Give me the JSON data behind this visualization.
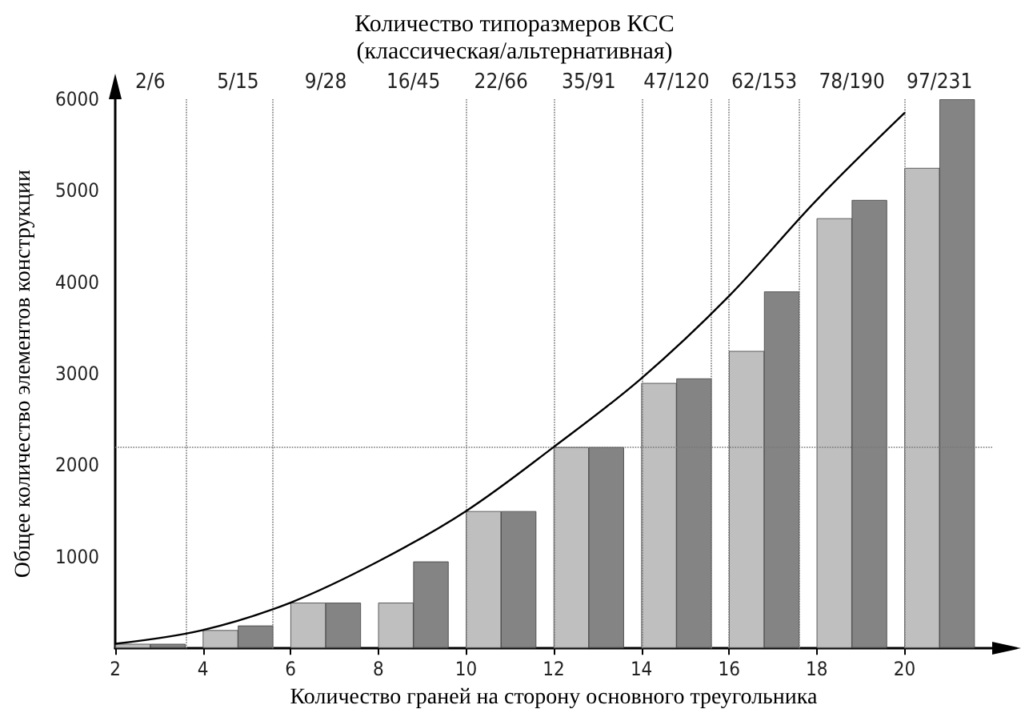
{
  "chart_data": {
    "type": "bar",
    "title": "Количество типоразмеров КСС\n(классическая/альтернативная)",
    "xlabel": "Количество граней на сторону основного треугольника",
    "ylabel": "Общее количество элементов конструкции",
    "xlim": [
      2,
      22
    ],
    "xticks": [
      2,
      4,
      6,
      8,
      10,
      12,
      14,
      16,
      18,
      20
    ],
    "ylim": [
      0,
      6000
    ],
    "yticks": [
      1000,
      2000,
      3000,
      4000,
      5000,
      6000
    ],
    "annotations": [
      "2/6",
      "5/15",
      "9/28",
      "16/45",
      "22/66",
      "35/91",
      "47/120",
      "62/153",
      "78/190",
      "97/231"
    ],
    "grid": false,
    "series": [
      {
        "color": "#b4b4b4",
        "x": [
          2.4,
          4.4,
          6.4,
          8.4,
          10.4,
          12.4,
          14.4,
          16.4,
          18.4,
          20.4
        ],
        "values": [
          50,
          200,
          500,
          500,
          1500,
          2200,
          2900,
          3250,
          4700,
          5250
        ]
      },
      {
        "color": "#6e6e6e",
        "x": [
          3.2,
          5.2,
          7.2,
          9.2,
          11.2,
          13.2,
          15.2,
          17.2,
          19.2,
          21.2
        ],
        "values": [
          50,
          250,
          500,
          950,
          1500,
          2200,
          2950,
          3900,
          4900,
          6000
        ]
      },
      {
        "type": "line",
        "color": "#000000",
        "marker": "none",
        "x": [
          2,
          4,
          6,
          8,
          10,
          12,
          14,
          16,
          18,
          20
        ],
        "values": [
          50,
          200,
          500,
          950,
          1500,
          2200,
          2950,
          3850,
          4900,
          5850
        ]
      }
    ],
    "ref_lines": [
      {
        "axis": "y",
        "value": 2200,
        "line_style": "dotted"
      },
      {
        "axis": "x",
        "value": 3.6,
        "line_style": "dotted"
      },
      {
        "axis": "x",
        "value": 5.6,
        "line_style": "dotted"
      },
      {
        "axis": "x",
        "value": 10,
        "line_style": "dotted"
      },
      {
        "axis": "x",
        "value": 12,
        "line_style": "dotted"
      },
      {
        "axis": "x",
        "value": 14,
        "line_style": "dotted"
      },
      {
        "axis": "x",
        "value": 15.6,
        "line_style": "dotted"
      },
      {
        "axis": "x",
        "value": 16,
        "line_style": "dotted"
      },
      {
        "axis": "x",
        "value": 17.6,
        "line_style": "dotted"
      },
      {
        "axis": "x",
        "value": 20,
        "line_style": "dotted"
      }
    ]
  }
}
